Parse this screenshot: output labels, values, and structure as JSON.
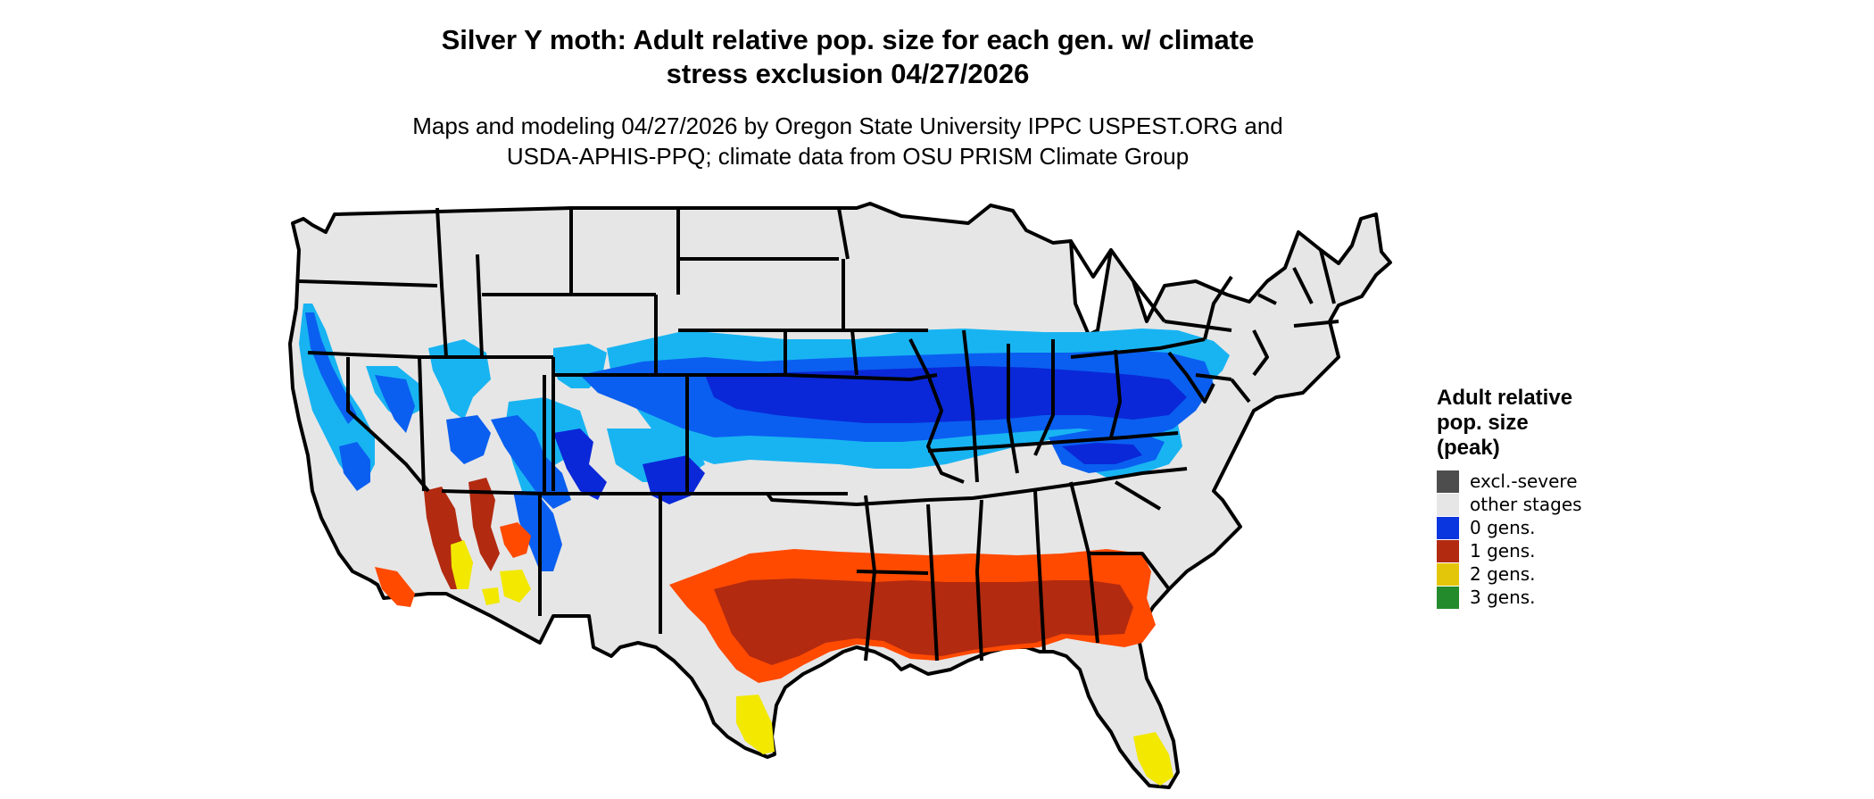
{
  "title": {
    "line1": "Silver Y moth: Adult relative pop. size for each gen. w/ climate",
    "line2": "stress exclusion 04/27/2026"
  },
  "subtitle": {
    "line1": "Maps and modeling 04/27/2026 by Oregon State University IPPC USPEST.ORG and",
    "line2": "USDA-APHIS-PPQ; climate data from OSU PRISM Climate Group"
  },
  "legend": {
    "title": [
      "Adult relative",
      "pop. size",
      "(peak)"
    ],
    "items": [
      {
        "label": "excl.-severe",
        "color": "#4d4d4d"
      },
      {
        "label": "other stages",
        "color": "#e6e6e6"
      },
      {
        "label": "0 gens.",
        "color": "#0a36e0"
      },
      {
        "label": "1 gens.",
        "color": "#b22a10"
      },
      {
        "label": "2 gens.",
        "color": "#e3c60a"
      },
      {
        "label": "3 gens.",
        "color": "#238b2c"
      }
    ]
  },
  "colors": {
    "land": "#e6e6e6",
    "light_blue": "#18b4f2",
    "mid_blue": "#0a5ff0",
    "dark_blue": "#0a28d8",
    "orange": "#ff4a00",
    "dark_red": "#b22a10",
    "yellow": "#f2e800",
    "border": "#000000"
  }
}
